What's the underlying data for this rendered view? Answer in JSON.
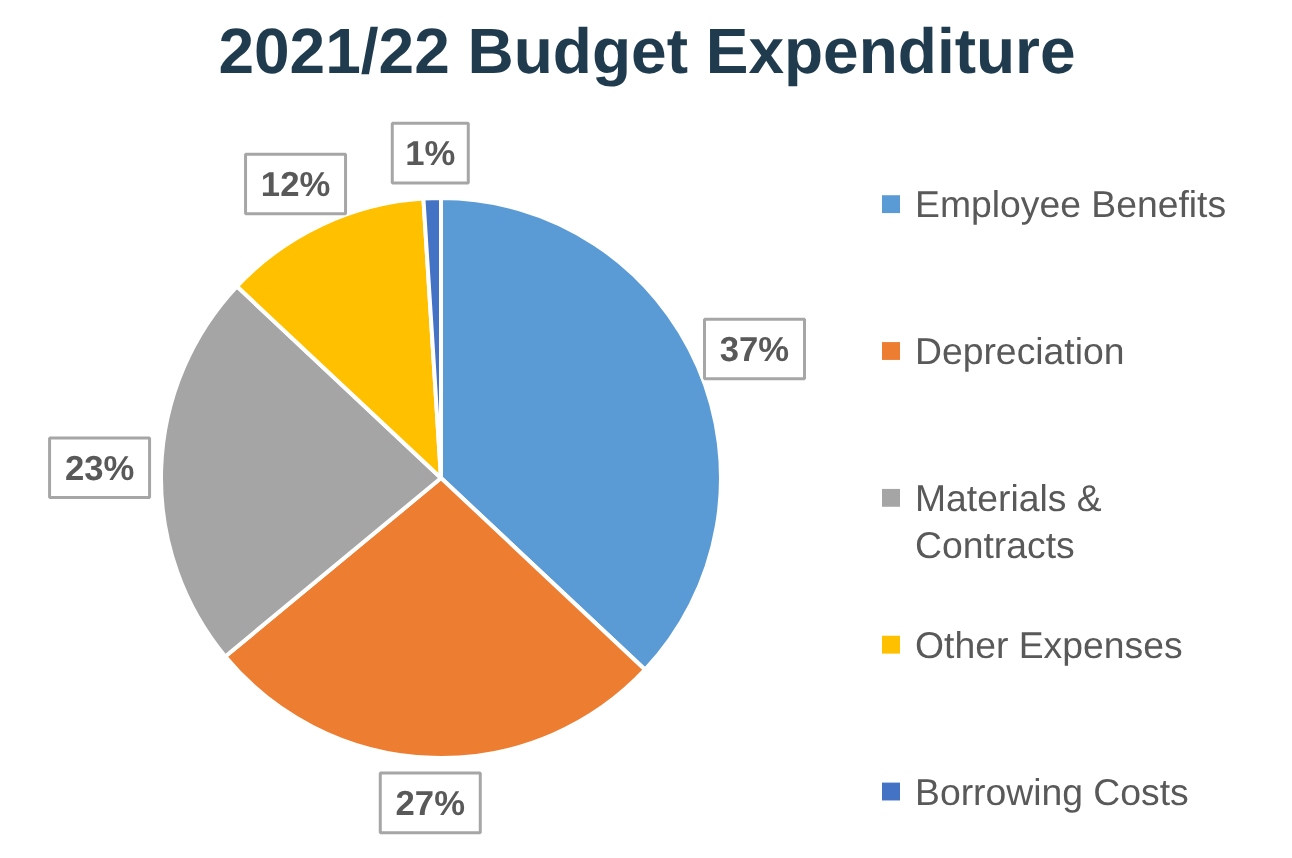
{
  "chart_data": {
    "type": "pie",
    "title": "2021/22 Budget Expenditure",
    "categories": [
      "Employee Benefits",
      "Depreciation",
      "Materials & Contracts",
      "Other Expenses",
      "Borrowing Costs"
    ],
    "values": [
      37,
      27,
      23,
      12,
      1
    ],
    "colors": [
      "#5b9bd5",
      "#ed7d31",
      "#a5a5a5",
      "#ffc000",
      "#4472c4"
    ],
    "value_labels": [
      "37%",
      "27%",
      "23%",
      "12%",
      "1%"
    ],
    "legend": "right"
  }
}
